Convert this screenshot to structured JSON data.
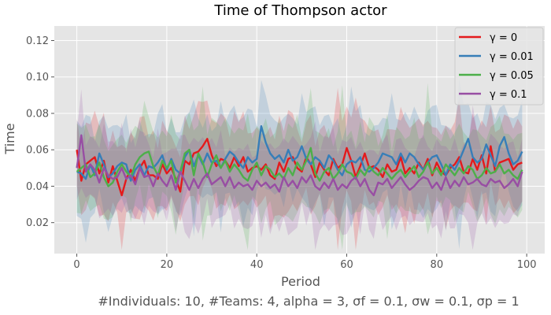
{
  "chart_data": {
    "type": "line",
    "title": "Time of Thompson actor",
    "xlabel": "Period",
    "ylabel": "Time",
    "caption": "#Individuals: 10,  #Teams: 4,  alpha = 3,  σf = 0.1,  σw = 0.1,  σp = 1",
    "xlim": [
      -5,
      104
    ],
    "ylim": [
      0.003,
      0.128
    ],
    "xticks": [
      0,
      20,
      40,
      60,
      80,
      100
    ],
    "xtick_labels": [
      "0",
      "20",
      "40",
      "60",
      "80",
      "100"
    ],
    "yticks": [
      0.02,
      0.04,
      0.06,
      0.08,
      0.1,
      0.12
    ],
    "ytick_labels": [
      "0.02",
      "0.04",
      "0.06",
      "0.08",
      "0.10",
      "0.12"
    ],
    "grid": true,
    "legend_position": "top-right",
    "series": [
      {
        "name": "γ =  0",
        "color": "#e41a1c",
        "values": [
          0.06,
          0.043,
          0.052,
          0.054,
          0.056,
          0.047,
          0.054,
          0.042,
          0.051,
          0.043,
          0.035,
          0.044,
          0.049,
          0.043,
          0.05,
          0.054,
          0.046,
          0.046,
          0.044,
          0.052,
          0.047,
          0.05,
          0.044,
          0.037,
          0.054,
          0.052,
          0.058,
          0.059,
          0.062,
          0.066,
          0.057,
          0.051,
          0.055,
          0.054,
          0.05,
          0.056,
          0.051,
          0.056,
          0.048,
          0.05,
          0.051,
          0.049,
          0.052,
          0.046,
          0.044,
          0.053,
          0.048,
          0.055,
          0.056,
          0.05,
          0.048,
          0.056,
          0.052,
          0.045,
          0.053,
          0.049,
          0.046,
          0.055,
          0.05,
          0.052,
          0.061,
          0.054,
          0.045,
          0.051,
          0.058,
          0.05,
          0.051,
          0.049,
          0.045,
          0.052,
          0.048,
          0.049,
          0.056,
          0.047,
          0.05,
          0.047,
          0.053,
          0.049,
          0.055,
          0.046,
          0.053,
          0.048,
          0.046,
          0.05,
          0.052,
          0.056,
          0.048,
          0.047,
          0.055,
          0.049,
          0.057,
          0.047,
          0.062,
          0.048,
          0.053,
          0.054,
          0.055,
          0.049,
          0.052,
          0.053
        ]
      },
      {
        "name": "γ =  0.01",
        "color": "#377eb8",
        "values": [
          0.048,
          0.047,
          0.044,
          0.052,
          0.046,
          0.058,
          0.052,
          0.045,
          0.047,
          0.051,
          0.053,
          0.052,
          0.043,
          0.049,
          0.052,
          0.046,
          0.051,
          0.05,
          0.053,
          0.057,
          0.049,
          0.055,
          0.049,
          0.047,
          0.056,
          0.06,
          0.051,
          0.057,
          0.052,
          0.058,
          0.053,
          0.054,
          0.05,
          0.055,
          0.059,
          0.057,
          0.053,
          0.05,
          0.056,
          0.053,
          0.055,
          0.073,
          0.064,
          0.058,
          0.055,
          0.057,
          0.053,
          0.06,
          0.054,
          0.056,
          0.062,
          0.055,
          0.052,
          0.056,
          0.054,
          0.05,
          0.057,
          0.054,
          0.049,
          0.046,
          0.052,
          0.054,
          0.053,
          0.056,
          0.049,
          0.048,
          0.05,
          0.053,
          0.058,
          0.057,
          0.056,
          0.052,
          0.058,
          0.053,
          0.058,
          0.056,
          0.052,
          0.049,
          0.053,
          0.056,
          0.057,
          0.052,
          0.046,
          0.052,
          0.049,
          0.054,
          0.06,
          0.066,
          0.056,
          0.053,
          0.055,
          0.063,
          0.057,
          0.051,
          0.062,
          0.067,
          0.058,
          0.052,
          0.054,
          0.059
        ]
      },
      {
        "name": "γ =  0.05",
        "color": "#4daf4a",
        "values": [
          0.048,
          0.05,
          0.052,
          0.045,
          0.047,
          0.053,
          0.045,
          0.04,
          0.042,
          0.048,
          0.052,
          0.048,
          0.045,
          0.052,
          0.056,
          0.058,
          0.059,
          0.051,
          0.046,
          0.054,
          0.05,
          0.054,
          0.042,
          0.048,
          0.058,
          0.06,
          0.046,
          0.058,
          0.053,
          0.045,
          0.052,
          0.057,
          0.05,
          0.054,
          0.048,
          0.052,
          0.049,
          0.045,
          0.043,
          0.049,
          0.053,
          0.046,
          0.051,
          0.049,
          0.045,
          0.047,
          0.044,
          0.05,
          0.046,
          0.053,
          0.049,
          0.054,
          0.061,
          0.047,
          0.043,
          0.048,
          0.05,
          0.044,
          0.047,
          0.052,
          0.048,
          0.047,
          0.044,
          0.049,
          0.046,
          0.051,
          0.048,
          0.046,
          0.05,
          0.047,
          0.044,
          0.047,
          0.049,
          0.045,
          0.048,
          0.051,
          0.045,
          0.048,
          0.053,
          0.047,
          0.05,
          0.046,
          0.052,
          0.049,
          0.046,
          0.05,
          0.047,
          0.051,
          0.049,
          0.044,
          0.046,
          0.05,
          0.047,
          0.048,
          0.052,
          0.047,
          0.049,
          0.046,
          0.044,
          0.049
        ]
      },
      {
        "name": "γ =  0.1",
        "color": "#984ea3",
        "values": [
          0.05,
          0.068,
          0.048,
          0.052,
          0.049,
          0.042,
          0.05,
          0.046,
          0.044,
          0.045,
          0.05,
          0.044,
          0.046,
          0.041,
          0.05,
          0.045,
          0.046,
          0.04,
          0.047,
          0.043,
          0.04,
          0.046,
          0.038,
          0.048,
          0.043,
          0.038,
          0.044,
          0.039,
          0.044,
          0.047,
          0.041,
          0.043,
          0.045,
          0.04,
          0.045,
          0.039,
          0.042,
          0.04,
          0.041,
          0.038,
          0.043,
          0.04,
          0.042,
          0.039,
          0.041,
          0.037,
          0.045,
          0.04,
          0.043,
          0.039,
          0.045,
          0.042,
          0.046,
          0.04,
          0.038,
          0.042,
          0.039,
          0.044,
          0.038,
          0.041,
          0.039,
          0.043,
          0.045,
          0.04,
          0.044,
          0.038,
          0.035,
          0.042,
          0.041,
          0.044,
          0.039,
          0.042,
          0.045,
          0.041,
          0.038,
          0.04,
          0.043,
          0.045,
          0.044,
          0.039,
          0.042,
          0.038,
          0.045,
          0.039,
          0.043,
          0.04,
          0.045,
          0.041,
          0.042,
          0.044,
          0.041,
          0.04,
          0.044,
          0.042,
          0.043,
          0.039,
          0.041,
          0.044,
          0.04,
          0.048
        ]
      }
    ]
  }
}
